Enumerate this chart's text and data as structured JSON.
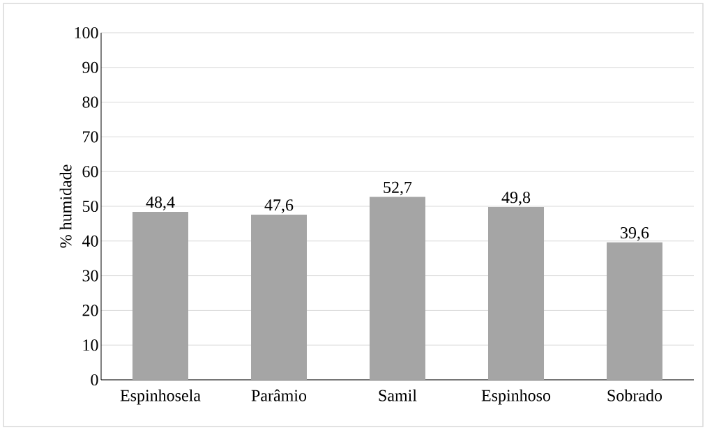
{
  "chart_data": {
    "type": "bar",
    "ylabel": "% humidade",
    "categories": [
      "Espinhosela",
      "Parâmio",
      "Samil",
      "Espinhoso",
      "Sobrado"
    ],
    "values": [
      48.4,
      47.6,
      52.7,
      49.8,
      39.6
    ],
    "value_labels": [
      "48,4",
      "47,6",
      "52,7",
      "49,8",
      "39,6"
    ],
    "color": "#a5a5a5",
    "ylim": [
      0,
      100
    ],
    "yticks": [
      0,
      10,
      20,
      30,
      40,
      50,
      60,
      70,
      80,
      90,
      100
    ],
    "grid": "y"
  }
}
